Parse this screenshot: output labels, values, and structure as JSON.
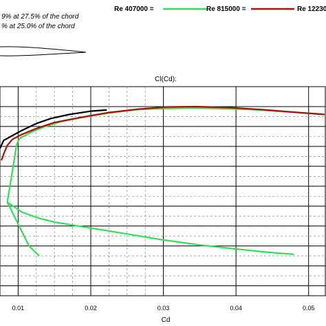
{
  "header": {
    "info_lines": [
      "9% at 27.5% of the chord",
      "% at 25.0% of the chord"
    ]
  },
  "legend": [
    {
      "label": "Re 407000 =",
      "color": "#33dd55"
    },
    {
      "label": "Re 815000 =",
      "color": "#aa1100"
    },
    {
      "label": "Re 12230",
      "color": "#000000"
    }
  ],
  "chart_data": {
    "type": "line",
    "title": "Cl(Cd):",
    "xlabel": "Cd",
    "ylabel": "",
    "xlim": [
      0.0075,
      0.0523
    ],
    "ylim": [
      0.35,
      1.4
    ],
    "x_ticks": [
      0.01,
      0.02,
      0.03,
      0.04,
      0.05
    ],
    "x_tick_labels": [
      "0.01",
      "0.02",
      "0.03",
      "0.04",
      "0.05"
    ],
    "grid": true,
    "series": [
      {
        "name": "Re 407000",
        "color": "#33dd55",
        "points": [
          [
            0.0129,
            0.55
          ],
          [
            0.0115,
            0.6
          ],
          [
            0.0085,
            0.82
          ],
          [
            0.0098,
            1.11
          ],
          [
            0.0102,
            1.14
          ],
          [
            0.0117,
            1.17
          ],
          [
            0.0137,
            1.2
          ],
          [
            0.016,
            1.225
          ],
          [
            0.0195,
            1.25
          ],
          [
            0.023,
            1.27
          ],
          [
            0.0265,
            1.285
          ],
          [
            0.03,
            1.29
          ],
          [
            0.034,
            1.293
          ],
          [
            0.038,
            1.29
          ],
          [
            0.042,
            1.285
          ],
          [
            0.0465,
            1.275
          ],
          [
            0.052,
            1.262
          ]
        ]
      },
      {
        "name": "Re 815000",
        "color": "#aa1100",
        "points": [
          [
            0.0077,
            1.03
          ],
          [
            0.0081,
            1.07
          ],
          [
            0.0085,
            1.105
          ],
          [
            0.0092,
            1.135
          ],
          [
            0.0105,
            1.16
          ],
          [
            0.0125,
            1.19
          ],
          [
            0.015,
            1.22
          ],
          [
            0.0185,
            1.245
          ],
          [
            0.0225,
            1.27
          ],
          [
            0.0265,
            1.287
          ],
          [
            0.0305,
            1.298
          ],
          [
            0.0345,
            1.3
          ],
          [
            0.039,
            1.295
          ],
          [
            0.0435,
            1.285
          ],
          [
            0.048,
            1.272
          ],
          [
            0.0522,
            1.26
          ]
        ]
      },
      {
        "name": "Re 12230",
        "color": "#000000",
        "points": [
          [
            0.0075,
            1.09
          ],
          [
            0.008,
            1.13
          ],
          [
            0.009,
            1.15
          ],
          [
            0.0105,
            1.18
          ],
          [
            0.0125,
            1.215
          ],
          [
            0.0145,
            1.24
          ],
          [
            0.017,
            1.26
          ],
          [
            0.02,
            1.277
          ],
          [
            0.0222,
            1.283
          ]
        ]
      },
      {
        "name": "",
        "color": "#33dd55",
        "points": [
          [
            0.0085,
            0.82
          ],
          [
            0.0105,
            0.77
          ],
          [
            0.0128,
            0.74
          ],
          [
            0.015,
            0.72
          ],
          [
            0.02,
            0.69
          ],
          [
            0.025,
            0.66
          ],
          [
            0.03,
            0.63
          ],
          [
            0.035,
            0.605
          ],
          [
            0.04,
            0.585
          ],
          [
            0.0445,
            0.568
          ],
          [
            0.048,
            0.558
          ]
        ]
      }
    ]
  }
}
